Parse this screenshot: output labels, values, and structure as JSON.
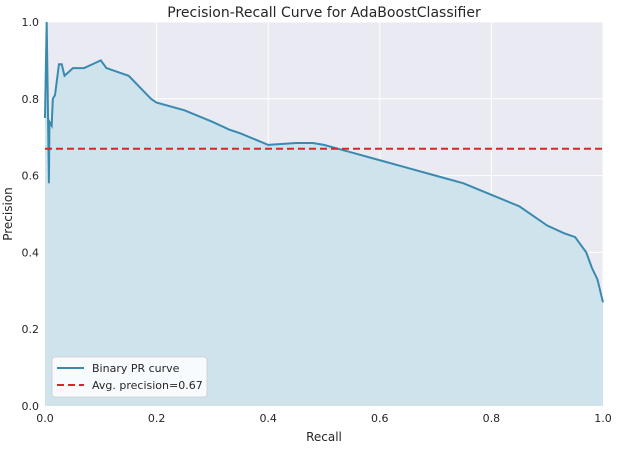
{
  "chart_data": {
    "type": "line",
    "title": "Precision-Recall Curve for AdaBoostClassifier",
    "xlabel": "Recall",
    "ylabel": "Precision",
    "xlim": [
      0.0,
      1.0
    ],
    "ylim": [
      0.0,
      1.0
    ],
    "xticks": [
      "0.0",
      "0.2",
      "0.4",
      "0.6",
      "0.8",
      "1.0"
    ],
    "yticks": [
      "0.0",
      "0.2",
      "0.4",
      "0.6",
      "0.8",
      "1.0"
    ],
    "grid": true,
    "legend_position": "lower-left",
    "series": [
      {
        "name": "Binary PR curve",
        "color": "#3a8ab0",
        "fill": "#cfe3ed",
        "x": [
          0.0,
          0.003,
          0.005,
          0.007,
          0.008,
          0.012,
          0.014,
          0.018,
          0.025,
          0.03,
          0.035,
          0.05,
          0.07,
          0.085,
          0.1,
          0.11,
          0.13,
          0.15,
          0.17,
          0.19,
          0.2,
          0.25,
          0.3,
          0.33,
          0.35,
          0.4,
          0.45,
          0.48,
          0.5,
          0.55,
          0.6,
          0.65,
          0.7,
          0.75,
          0.8,
          0.85,
          0.9,
          0.93,
          0.95,
          0.97,
          0.98,
          0.99,
          1.0
        ],
        "y": [
          0.75,
          1.0,
          0.8,
          0.58,
          0.74,
          0.73,
          0.8,
          0.81,
          0.89,
          0.89,
          0.86,
          0.88,
          0.88,
          0.89,
          0.9,
          0.88,
          0.87,
          0.86,
          0.83,
          0.8,
          0.79,
          0.77,
          0.74,
          0.72,
          0.71,
          0.68,
          0.685,
          0.685,
          0.68,
          0.66,
          0.64,
          0.62,
          0.6,
          0.58,
          0.55,
          0.52,
          0.47,
          0.45,
          0.44,
          0.4,
          0.36,
          0.33,
          0.27
        ]
      },
      {
        "name": "Avg. precision=0.67",
        "color": "#d62728",
        "dashed": true,
        "x": [
          0.0,
          1.0
        ],
        "y": [
          0.67,
          0.67
        ]
      }
    ]
  }
}
